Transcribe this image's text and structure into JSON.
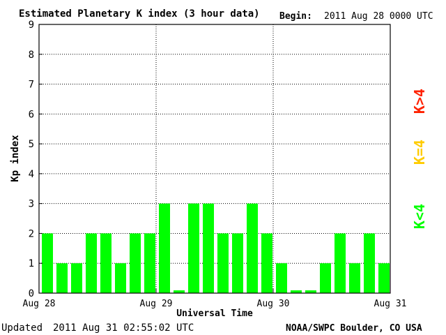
{
  "header": {
    "title": "Estimated Planetary K index (3 hour data)",
    "begin_label": "Begin:",
    "begin_value": "2011 Aug 28 0000 UTC"
  },
  "footer": {
    "updated_label": "Updated",
    "updated_value": "2011 Aug 31 02:55:02 UTC",
    "source": "NOAA/SWPC Boulder, CO USA"
  },
  "legend": {
    "items": [
      {
        "label": "K<4",
        "color": "#00ff00"
      },
      {
        "label": "K=4",
        "color": "#ffcc00"
      },
      {
        "label": "K>4",
        "color": "#ff2200"
      }
    ]
  },
  "chart_data": {
    "type": "bar",
    "title": "Estimated Planetary K index (3 hour data)",
    "xlabel": "Universal Time",
    "ylabel": "Kp index",
    "ylim": [
      0,
      9
    ],
    "yticks": [
      "0",
      "1",
      "2",
      "3",
      "4",
      "5",
      "6",
      "7",
      "8",
      "9"
    ],
    "xticks": [
      "Aug 28",
      "Aug 29",
      "Aug 30",
      "Aug 31"
    ],
    "grid": true,
    "legend_position": "right",
    "bar_color": "#00ff00",
    "values": [
      2,
      1,
      1,
      2,
      2,
      1,
      2,
      2,
      3,
      0,
      3,
      3,
      2,
      2,
      3,
      2,
      1,
      0,
      0,
      1,
      2,
      1,
      2,
      1
    ]
  }
}
